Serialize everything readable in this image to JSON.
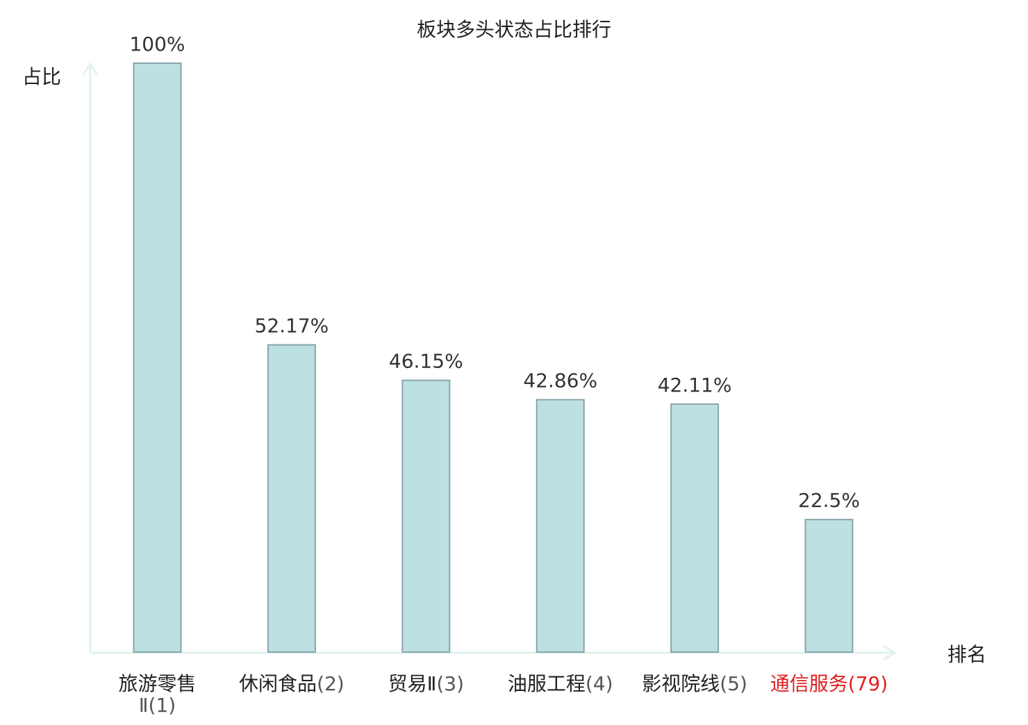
{
  "chart_data": {
    "type": "bar",
    "title": "板块多头状态占比排行",
    "ylabel": "占比",
    "xlabel": "排名",
    "categories": [
      {
        "name": "旅游零售Ⅱ",
        "rank": "(1)",
        "highlight": false
      },
      {
        "name": "休闲食品",
        "rank": "(2)",
        "highlight": false
      },
      {
        "name": "贸易Ⅱ",
        "rank": "(3)",
        "highlight": false
      },
      {
        "name": "油服工程",
        "rank": "(4)",
        "highlight": false
      },
      {
        "name": "影视院线",
        "rank": "(5)",
        "highlight": false
      },
      {
        "name": "通信服务",
        "rank": "(79)",
        "highlight": true
      }
    ],
    "values": [
      100,
      52.17,
      46.15,
      42.86,
      42.11,
      22.5
    ],
    "value_labels": [
      "100%",
      "52.17%",
      "46.15%",
      "42.86%",
      "42.11%",
      "22.5%"
    ],
    "ylim": [
      0,
      100
    ],
    "grid": false,
    "colors": {
      "bar_fill": "#bde0e3",
      "bar_stroke": "#89a5ab",
      "axis": "#e0f2f0",
      "label_text": "#333333",
      "category_text": "#222222",
      "rank_text": "#555555",
      "highlight_text": "#e02020"
    }
  }
}
